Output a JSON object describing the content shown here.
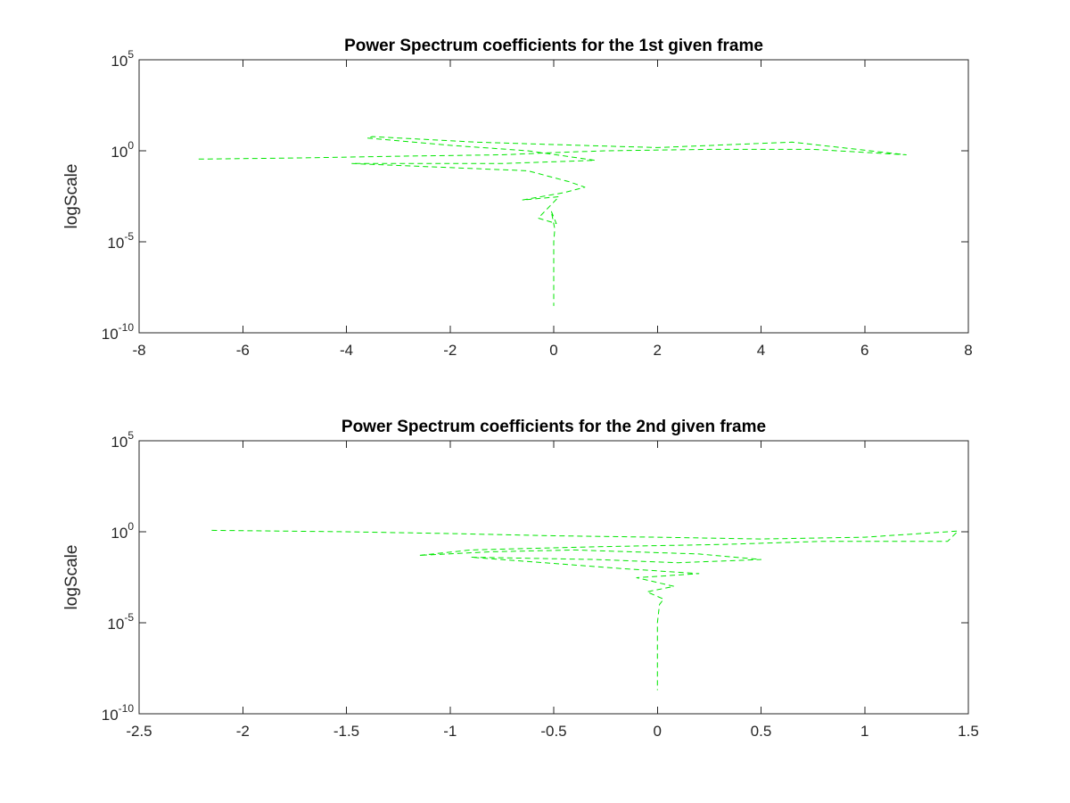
{
  "chart_data": [
    {
      "type": "line",
      "title": "Power Spectrum coefficients for the 1st given frame",
      "xlabel": "",
      "ylabel": "logScale",
      "xlim": [
        -8,
        8
      ],
      "ylim": [
        1e-10,
        100000.0
      ],
      "yscale": "log",
      "xticks": [
        "-8",
        "-6",
        "-4",
        "-2",
        "0",
        "2",
        "4",
        "6",
        "8"
      ],
      "yticks": [
        {
          "base": "10",
          "exp": "-10"
        },
        {
          "base": "10",
          "exp": "-5"
        },
        {
          "base": "10",
          "exp": "0"
        },
        {
          "base": "10",
          "exp": "5"
        }
      ],
      "grid": false,
      "series_color": "#00e600",
      "line_style": "dashed",
      "series": [
        {
          "x": [
            -6.85,
            -5.0,
            -3.0,
            -1.0,
            0.0,
            1.0,
            3.0,
            5.0,
            6.8,
            4.6,
            2.0,
            0.5,
            -1.5,
            -3.5,
            -3.6,
            -2.0,
            -0.5,
            0.8,
            -1.0,
            -3.9,
            -0.5,
            0.3,
            0.6,
            0.2,
            -0.6,
            0.1,
            -0.3,
            0.05,
            -0.05,
            0.02,
            0.0,
            0.0
          ],
          "y": [
            0.35,
            0.4,
            0.5,
            0.6,
            0.8,
            1.0,
            1.2,
            1.2,
            0.6,
            3.0,
            1.5,
            2.0,
            3.0,
            6.0,
            5.0,
            2.0,
            1.0,
            0.3,
            0.2,
            0.2,
            0.08,
            0.02,
            0.01,
            0.005,
            0.002,
            0.003,
            0.0002,
            0.0001,
            0.0005,
            5e-05,
            1e-05,
            3e-09
          ]
        }
      ]
    },
    {
      "type": "line",
      "title": "Power Spectrum coefficients for the 2nd given frame",
      "xlabel": "",
      "ylabel": "logScale",
      "xlim": [
        -2.5,
        1.5
      ],
      "ylim": [
        1e-10,
        100000.0
      ],
      "yscale": "log",
      "xticks": [
        "-2.5",
        "-2",
        "-1.5",
        "-1",
        "-0.5",
        "0",
        "0.5",
        "1",
        "1.5"
      ],
      "yticks": [
        {
          "base": "10",
          "exp": "-10"
        },
        {
          "base": "10",
          "exp": "-5"
        },
        {
          "base": "10",
          "exp": "0"
        },
        {
          "base": "10",
          "exp": "5"
        }
      ],
      "grid": false,
      "series_color": "#00e600",
      "line_style": "dashed",
      "series": [
        {
          "x": [
            -2.15,
            -1.5,
            -1.0,
            -0.5,
            0.0,
            0.5,
            1.0,
            1.45,
            1.4,
            0.8,
            0.3,
            -0.3,
            -0.9,
            -1.15,
            -0.8,
            -0.4,
            0.2,
            0.5,
            0.1,
            -0.3,
            -0.9,
            -0.2,
            0.2,
            -0.1,
            0.08,
            -0.05,
            0.03,
            0.01,
            0.0,
            0.0,
            0.0
          ],
          "y": [
            1.2,
            1.0,
            0.8,
            0.6,
            0.5,
            0.4,
            0.5,
            1.1,
            0.3,
            0.3,
            0.2,
            0.15,
            0.1,
            0.05,
            0.08,
            0.1,
            0.06,
            0.03,
            0.02,
            0.03,
            0.04,
            0.01,
            0.005,
            0.003,
            0.001,
            0.0005,
            0.0002,
            0.0001,
            1e-05,
            1e-06,
            2e-09
          ]
        }
      ]
    }
  ]
}
